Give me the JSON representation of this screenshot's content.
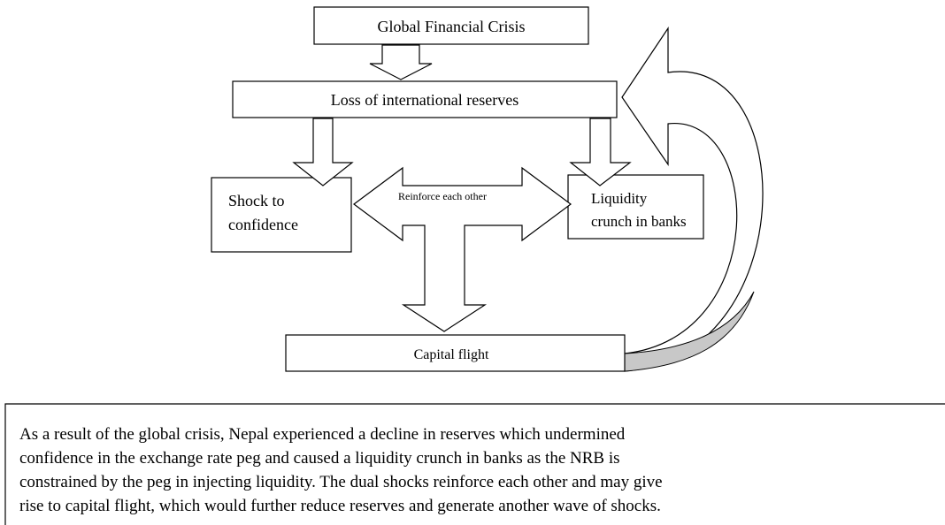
{
  "nodes": [
    {
      "lines": [
        "Global Financial Crisis"
      ]
    },
    {
      "lines": [
        "Loss of international reserves"
      ]
    },
    {
      "lines": [
        "Shock to",
        "confidence"
      ]
    },
    {
      "lines": [
        "Liquidity",
        "crunch in banks"
      ]
    },
    {
      "lines": [
        "Capital flight"
      ]
    }
  ],
  "edge_label": "Reinforce each other",
  "caption": {
    "lines": [
      "As a result of the global crisis, Nepal experienced a decline in reserves which undermined",
      "confidence in the exchange rate peg and caused a liquidity crunch in banks as the NRB is",
      "constrained by the peg in injecting liquidity. The dual shocks reinforce each other and may give",
      "rise to capital flight, which would further reduce reserves and generate another wave of shocks."
    ]
  }
}
